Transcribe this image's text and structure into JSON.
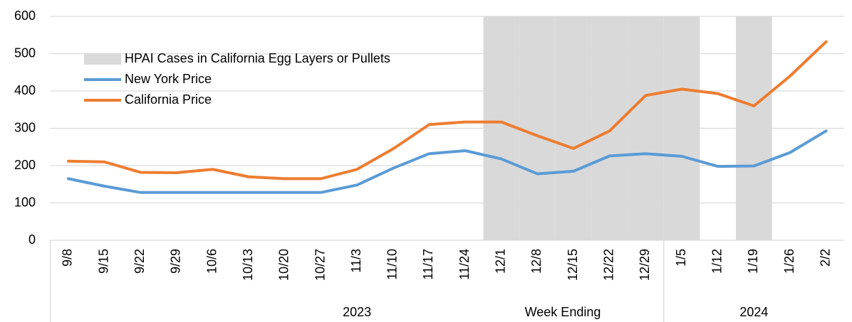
{
  "chart_data": {
    "type": "line",
    "x_label": "Week Ending",
    "groups": [
      {
        "label": "2023",
        "categories": [
          "9/8",
          "9/15",
          "9/22",
          "9/29",
          "10/6",
          "10/13",
          "10/20",
          "10/27",
          "11/3",
          "11/10",
          "11/17",
          "11/24",
          "12/1",
          "12/8",
          "12/15",
          "12/22",
          "12/29"
        ]
      },
      {
        "label": "2024",
        "categories": [
          "1/5",
          "1/12",
          "1/19",
          "1/26",
          "2/2"
        ]
      }
    ],
    "series": [
      {
        "name": "HPAI Cases in California Egg Layers or Pullets",
        "type": "bar",
        "color": "#d9d9d9",
        "values": [
          null,
          null,
          null,
          null,
          null,
          null,
          null,
          null,
          null,
          null,
          null,
          null,
          600,
          600,
          600,
          600,
          600,
          600,
          null,
          600,
          null,
          null
        ]
      },
      {
        "name": "New York Price",
        "type": "line",
        "color": "#5b9bd5",
        "values": [
          165,
          145,
          128,
          128,
          128,
          128,
          128,
          128,
          148,
          193,
          232,
          240,
          218,
          178,
          185,
          226,
          232,
          225,
          198,
          199,
          235,
          293
        ]
      },
      {
        "name": "California Price",
        "type": "line",
        "color": "#ed7d31",
        "values": [
          212,
          210,
          182,
          181,
          190,
          170,
          165,
          165,
          190,
          245,
          310,
          317,
          317,
          280,
          246,
          293,
          388,
          405,
          393,
          360,
          440,
          532
        ]
      }
    ],
    "ylim": [
      0,
      600
    ],
    "yticks": [
      0,
      100,
      200,
      300,
      400,
      500,
      600
    ],
    "grid": true,
    "legend": "upper-left"
  }
}
